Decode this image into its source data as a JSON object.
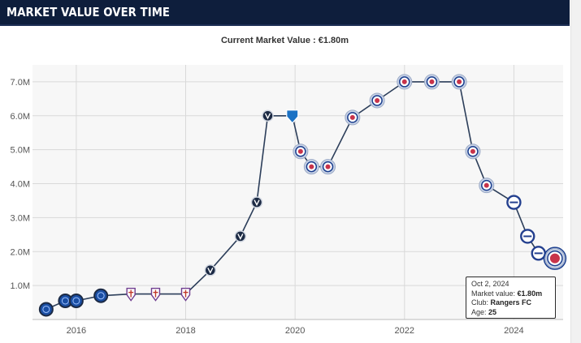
{
  "header": {
    "title": "MARKET VALUE OVER TIME"
  },
  "chart_data": {
    "type": "line",
    "title": "Current Market Value : €1.80m",
    "xlabel": "",
    "ylabel": "",
    "y_ticks": [
      1.0,
      2.0,
      3.0,
      4.0,
      5.0,
      6.0,
      7.0
    ],
    "y_tick_labels": [
      "1.0M",
      "2.0M",
      "3.0M",
      "4.0M",
      "5.0M",
      "6.0M",
      "7.0M"
    ],
    "x_ticks": [
      2016,
      2018,
      2020,
      2022,
      2024
    ],
    "x_tick_labels": [
      "2016",
      "2018",
      "2020",
      "2022",
      "2024"
    ],
    "grid": true,
    "series": [
      {
        "color": "#2c3e5a",
        "points": [
          {
            "x": 2015.45,
            "y": 0.3,
            "club": "blue"
          },
          {
            "x": 2015.8,
            "y": 0.55,
            "club": "blue"
          },
          {
            "x": 2016.0,
            "y": 0.55,
            "club": "blue"
          },
          {
            "x": 2016.45,
            "y": 0.7,
            "club": "blue"
          },
          {
            "x": 2017.0,
            "y": 0.75,
            "club": "fiorentina"
          },
          {
            "x": 2017.45,
            "y": 0.75,
            "club": "fiorentina"
          },
          {
            "x": 2018.0,
            "y": 0.75,
            "club": "fiorentina"
          },
          {
            "x": 2018.45,
            "y": 1.45,
            "club": "v"
          },
          {
            "x": 2019.0,
            "y": 2.45,
            "club": "v"
          },
          {
            "x": 2019.3,
            "y": 3.45,
            "club": "v"
          },
          {
            "x": 2019.5,
            "y": 6.0,
            "club": "v"
          },
          {
            "x": 2019.95,
            "y": 6.0,
            "club": "genk"
          },
          {
            "x": 2020.1,
            "y": 4.95,
            "club": "rangers"
          },
          {
            "x": 2020.3,
            "y": 4.5,
            "club": "rangers"
          },
          {
            "x": 2020.6,
            "y": 4.5,
            "club": "rangers"
          },
          {
            "x": 2021.05,
            "y": 5.95,
            "club": "rangers"
          },
          {
            "x": 2021.5,
            "y": 6.45,
            "club": "rangers"
          },
          {
            "x": 2022.0,
            "y": 7.0,
            "club": "rangers"
          },
          {
            "x": 2022.5,
            "y": 7.0,
            "club": "rangers"
          },
          {
            "x": 2023.0,
            "y": 7.0,
            "club": "rangers"
          },
          {
            "x": 2023.25,
            "y": 4.95,
            "club": "rangers"
          },
          {
            "x": 2023.5,
            "y": 3.95,
            "club": "rangers"
          },
          {
            "x": 2024.0,
            "y": 3.45,
            "club": "rangers2"
          },
          {
            "x": 2024.25,
            "y": 2.45,
            "club": "rangers2"
          },
          {
            "x": 2024.45,
            "y": 1.95,
            "club": "rangers2"
          },
          {
            "x": 2024.75,
            "y": 1.8,
            "club": "rangers",
            "highlight": true
          }
        ]
      }
    ],
    "colors": {
      "line": "#2c3e5a",
      "grid": "#d9d9d9",
      "plot_bg": "#f7f7f7",
      "blue_club": "#1a4ea3",
      "rangers": "#1b3f8f",
      "fiorentina": "#6f3d8f",
      "v_club": "#1c2a44"
    }
  },
  "tooltip": {
    "date": "Oct 2, 2024",
    "market_value_label": "Market value:",
    "market_value": "€1.80m",
    "club_label": "Club:",
    "club": "Rangers FC",
    "age_label": "Age:",
    "age": "25"
  }
}
